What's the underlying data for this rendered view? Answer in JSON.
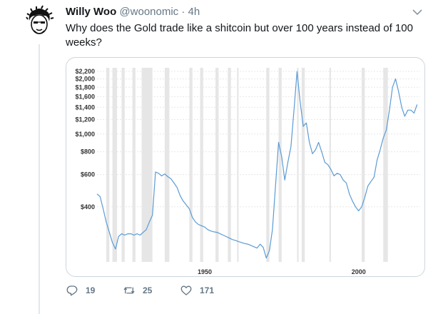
{
  "tweet": {
    "display_name": "Willy Woo",
    "handle": "@woonomic",
    "separator": "·",
    "time": "4h",
    "text": "Why does the Gold trade like a shitcoin but over 100 years instead of 100 weeks?",
    "replies": "19",
    "retweets": "25",
    "likes": "171"
  },
  "icons": [
    "avatar",
    "chevron-down-icon",
    "reply-icon",
    "retweet-icon",
    "like-icon"
  ],
  "colors": {
    "line": "#5b9bd5",
    "recession_band": "#e6e6e6",
    "gridline": "#e8e8e8",
    "muted_text": "#657786",
    "border": "#ccd6dd"
  },
  "chart_data": {
    "type": "line",
    "title": "",
    "xlabel": "",
    "ylabel": "",
    "y_scale": "log",
    "ylim": [
      200,
      2300
    ],
    "xlim": [
      1915,
      2020
    ],
    "grid": true,
    "x_tick_labels": [
      {
        "year": 1950,
        "label": "1950"
      },
      {
        "year": 2000,
        "label": "2000"
      }
    ],
    "y_tick_labels": [
      {
        "value": 2200,
        "label": "$2,200"
      },
      {
        "value": 2000,
        "label": "$2,000"
      },
      {
        "value": 1800,
        "label": "$1,800"
      },
      {
        "value": 1600,
        "label": "$1,600"
      },
      {
        "value": 1400,
        "label": "$1,400"
      },
      {
        "value": 1200,
        "label": "$1,200"
      },
      {
        "value": 1000,
        "label": "$1,000"
      },
      {
        "value": 800,
        "label": "$800"
      },
      {
        "value": 600,
        "label": "$600"
      },
      {
        "value": 400,
        "label": "$400"
      }
    ],
    "recessions": [
      [
        1918,
        1919
      ],
      [
        1920,
        1921.5
      ],
      [
        1923,
        1924
      ],
      [
        1926.5,
        1927.5
      ],
      [
        1929.5,
        1933
      ],
      [
        1937,
        1938.5
      ],
      [
        1945,
        1946
      ],
      [
        1948.5,
        1949.5
      ],
      [
        1953.5,
        1954.5
      ],
      [
        1957.5,
        1958.5
      ],
      [
        1960.5,
        1961
      ],
      [
        1970,
        1971
      ],
      [
        1974,
        1975
      ],
      [
        1980,
        1980.5
      ],
      [
        1981.5,
        1982.5
      ],
      [
        1990.5,
        1991
      ],
      [
        2001,
        2002
      ],
      [
        2008,
        2009.5
      ]
    ],
    "series": [
      {
        "points": [
          [
            1915,
            470
          ],
          [
            1916,
            455
          ],
          [
            1917,
            390
          ],
          [
            1918,
            330
          ],
          [
            1919,
            290
          ],
          [
            1920,
            255
          ],
          [
            1921,
            235
          ],
          [
            1922,
            275
          ],
          [
            1923,
            285
          ],
          [
            1924,
            280
          ],
          [
            1925,
            285
          ],
          [
            1926,
            285
          ],
          [
            1927,
            280
          ],
          [
            1928,
            285
          ],
          [
            1929,
            280
          ],
          [
            1930,
            290
          ],
          [
            1931,
            300
          ],
          [
            1932,
            330
          ],
          [
            1933,
            360
          ],
          [
            1934,
            620
          ],
          [
            1935,
            610
          ],
          [
            1936,
            590
          ],
          [
            1937,
            605
          ],
          [
            1938,
            585
          ],
          [
            1939,
            570
          ],
          [
            1940,
            540
          ],
          [
            1941,
            510
          ],
          [
            1942,
            460
          ],
          [
            1943,
            430
          ],
          [
            1944,
            410
          ],
          [
            1945,
            390
          ],
          [
            1946,
            350
          ],
          [
            1947,
            330
          ],
          [
            1948,
            320
          ],
          [
            1949,
            315
          ],
          [
            1950,
            310
          ],
          [
            1951,
            300
          ],
          [
            1952,
            295
          ],
          [
            1953,
            292
          ],
          [
            1954,
            290
          ],
          [
            1955,
            285
          ],
          [
            1956,
            280
          ],
          [
            1957,
            275
          ],
          [
            1958,
            270
          ],
          [
            1959,
            265
          ],
          [
            1960,
            262
          ],
          [
            1961,
            258
          ],
          [
            1962,
            255
          ],
          [
            1963,
            252
          ],
          [
            1964,
            250
          ],
          [
            1965,
            246
          ],
          [
            1966,
            242
          ],
          [
            1967,
            238
          ],
          [
            1968,
            250
          ],
          [
            1969,
            240
          ],
          [
            1970,
            210
          ],
          [
            1971,
            230
          ],
          [
            1972,
            300
          ],
          [
            1973,
            520
          ],
          [
            1974,
            900
          ],
          [
            1975,
            750
          ],
          [
            1976,
            560
          ],
          [
            1977,
            700
          ],
          [
            1978,
            850
          ],
          [
            1979,
            1350
          ],
          [
            1980,
            2200
          ],
          [
            1981,
            1500
          ],
          [
            1982,
            1100
          ],
          [
            1983,
            1150
          ],
          [
            1984,
            900
          ],
          [
            1985,
            780
          ],
          [
            1986,
            820
          ],
          [
            1987,
            900
          ],
          [
            1988,
            800
          ],
          [
            1989,
            700
          ],
          [
            1990,
            680
          ],
          [
            1991,
            640
          ],
          [
            1992,
            590
          ],
          [
            1993,
            610
          ],
          [
            1994,
            600
          ],
          [
            1995,
            560
          ],
          [
            1996,
            540
          ],
          [
            1997,
            470
          ],
          [
            1998,
            430
          ],
          [
            1999,
            400
          ],
          [
            2000,
            380
          ],
          [
            2001,
            400
          ],
          [
            2002,
            450
          ],
          [
            2003,
            520
          ],
          [
            2004,
            550
          ],
          [
            2005,
            580
          ],
          [
            2006,
            720
          ],
          [
            2007,
            820
          ],
          [
            2008,
            950
          ],
          [
            2009,
            1050
          ],
          [
            2010,
            1350
          ],
          [
            2011,
            1800
          ],
          [
            2012,
            2000
          ],
          [
            2013,
            1700
          ],
          [
            2014,
            1400
          ],
          [
            2015,
            1250
          ],
          [
            2016,
            1350
          ],
          [
            2017,
            1350
          ],
          [
            2018,
            1300
          ],
          [
            2019,
            1450
          ]
        ]
      }
    ]
  }
}
